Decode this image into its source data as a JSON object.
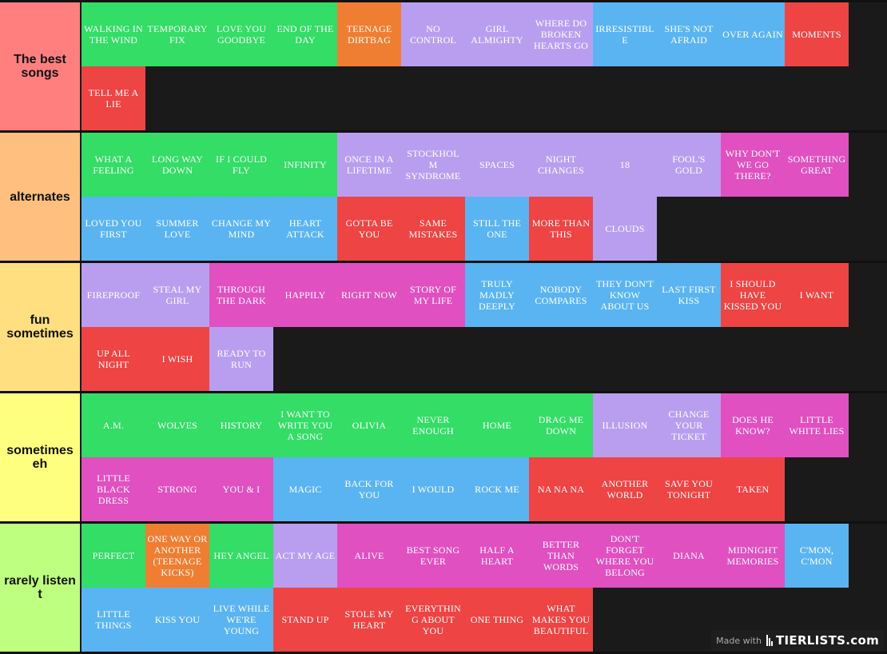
{
  "colors": {
    "green": "#33dd66",
    "orange": "#f07e32",
    "lavender": "#b99ef0",
    "blue": "#5ab4f2",
    "red": "#ee4444",
    "pink": "#e050c0"
  },
  "tiers": [
    {
      "label": "The best songs",
      "label_color": "#ff7f7f",
      "rows": 2,
      "items": [
        {
          "text": "WALKING IN THE WIND",
          "color": "green"
        },
        {
          "text": "TEMPORARY FIX",
          "color": "green"
        },
        {
          "text": "LOVE YOU GOODBYE",
          "color": "green"
        },
        {
          "text": "END OF THE DAY",
          "color": "green"
        },
        {
          "text": "TEENAGE DIRTBAG",
          "color": "orange"
        },
        {
          "text": "NO CONTROL",
          "color": "lavender"
        },
        {
          "text": "GIRL ALMIGHTY",
          "color": "lavender"
        },
        {
          "text": "WHERE DO BROKEN HEARTS GO",
          "color": "lavender"
        },
        {
          "text": "IRRESISTIBLE",
          "color": "blue"
        },
        {
          "text": "SHE'S NOT AFRAID",
          "color": "blue"
        },
        {
          "text": "OVER AGAIN",
          "color": "blue"
        },
        {
          "text": "MOMENTS",
          "color": "red"
        },
        {
          "text": "TELL ME A LIE",
          "color": "red"
        }
      ]
    },
    {
      "label": "alternates",
      "label_color": "#ffbf7f",
      "rows": 2,
      "items": [
        {
          "text": "WHAT A FEELING",
          "color": "green"
        },
        {
          "text": "LONG WAY DOWN",
          "color": "green"
        },
        {
          "text": "IF I COULD FLY",
          "color": "green"
        },
        {
          "text": "INFINITY",
          "color": "green"
        },
        {
          "text": "ONCE IN A LIFETIME",
          "color": "lavender"
        },
        {
          "text": "STOCKHOLM SYNDROME",
          "color": "lavender"
        },
        {
          "text": "SPACES",
          "color": "lavender"
        },
        {
          "text": "NIGHT CHANGES",
          "color": "lavender"
        },
        {
          "text": "18",
          "color": "lavender"
        },
        {
          "text": "FOOL'S GOLD",
          "color": "lavender"
        },
        {
          "text": "WHY DON'T WE GO THERE?",
          "color": "pink"
        },
        {
          "text": "SOMETHING GREAT",
          "color": "pink"
        },
        {
          "text": "LOVED YOU FIRST",
          "color": "blue"
        },
        {
          "text": "SUMMER LOVE",
          "color": "blue"
        },
        {
          "text": "CHANGE MY MIND",
          "color": "blue"
        },
        {
          "text": "HEART ATTACK",
          "color": "blue"
        },
        {
          "text": "GOTTA BE YOU",
          "color": "red"
        },
        {
          "text": "SAME MISTAKES",
          "color": "red"
        },
        {
          "text": "STILL THE ONE",
          "color": "blue"
        },
        {
          "text": "MORE THAN THIS",
          "color": "red"
        },
        {
          "text": "CLOUDS",
          "color": "lavender"
        }
      ]
    },
    {
      "label": "fun sometimes",
      "label_color": "#ffdf7f",
      "rows": 2,
      "items": [
        {
          "text": "FIREPROOF",
          "color": "lavender"
        },
        {
          "text": "STEAL MY GIRL",
          "color": "lavender"
        },
        {
          "text": "THROUGH THE DARK",
          "color": "pink"
        },
        {
          "text": "HAPPILY",
          "color": "pink"
        },
        {
          "text": "RIGHT NOW",
          "color": "pink"
        },
        {
          "text": "STORY OF MY LIFE",
          "color": "pink"
        },
        {
          "text": "TRULY MADLY DEEPLY",
          "color": "blue"
        },
        {
          "text": "NOBODY COMPARES",
          "color": "blue"
        },
        {
          "text": "THEY DON'T KNOW ABOUT US",
          "color": "blue"
        },
        {
          "text": "LAST FIRST KISS",
          "color": "blue"
        },
        {
          "text": "I SHOULD HAVE KISSED YOU",
          "color": "red"
        },
        {
          "text": "I WANT",
          "color": "red"
        },
        {
          "text": "UP ALL NIGHT",
          "color": "red"
        },
        {
          "text": "I WISH",
          "color": "red"
        },
        {
          "text": "READY TO RUN",
          "color": "lavender"
        }
      ]
    },
    {
      "label": "sometimes eh",
      "label_color": "#ffff7f",
      "rows": 2,
      "items": [
        {
          "text": "A.M.",
          "color": "green"
        },
        {
          "text": "WOLVES",
          "color": "green"
        },
        {
          "text": "HISTORY",
          "color": "green"
        },
        {
          "text": "I WANT TO WRITE YOU A SONG",
          "color": "green"
        },
        {
          "text": "OLIVIA",
          "color": "green"
        },
        {
          "text": "NEVER ENOUGH",
          "color": "green"
        },
        {
          "text": "HOME",
          "color": "green"
        },
        {
          "text": "DRAG ME DOWN",
          "color": "green"
        },
        {
          "text": "ILLUSION",
          "color": "lavender"
        },
        {
          "text": "CHANGE YOUR TICKET",
          "color": "lavender"
        },
        {
          "text": "DOES HE KNOW?",
          "color": "pink"
        },
        {
          "text": "LITTLE WHITE LIES",
          "color": "pink"
        },
        {
          "text": "LITTLE BLACK DRESS",
          "color": "pink"
        },
        {
          "text": "STRONG",
          "color": "pink"
        },
        {
          "text": "YOU & I",
          "color": "pink"
        },
        {
          "text": "MAGIC",
          "color": "blue"
        },
        {
          "text": "BACK FOR YOU",
          "color": "blue"
        },
        {
          "text": "I WOULD",
          "color": "blue"
        },
        {
          "text": "ROCK ME",
          "color": "blue"
        },
        {
          "text": "NA NA NA",
          "color": "red"
        },
        {
          "text": "ANOTHER WORLD",
          "color": "red"
        },
        {
          "text": "SAVE YOU TONIGHT",
          "color": "red"
        },
        {
          "text": "TAKEN",
          "color": "red"
        }
      ]
    },
    {
      "label": "rarely listen t",
      "label_color": "#bfff7f",
      "rows": 2,
      "items": [
        {
          "text": "PERFECT",
          "color": "green"
        },
        {
          "text": "ONE WAY OR ANOTHER (TEENAGE KICKS)",
          "color": "orange"
        },
        {
          "text": "HEY ANGEL",
          "color": "green"
        },
        {
          "text": "ACT MY AGE",
          "color": "lavender"
        },
        {
          "text": "ALIVE",
          "color": "pink"
        },
        {
          "text": "BEST SONG EVER",
          "color": "pink"
        },
        {
          "text": "HALF A HEART",
          "color": "pink"
        },
        {
          "text": "BETTER THAN WORDS",
          "color": "pink"
        },
        {
          "text": "DON'T FORGET WHERE YOU BELONG",
          "color": "pink"
        },
        {
          "text": "DIANA",
          "color": "pink"
        },
        {
          "text": "MIDNIGHT MEMORIES",
          "color": "pink"
        },
        {
          "text": "C'MON, C'MON",
          "color": "blue"
        },
        {
          "text": "LITTLE THINGS",
          "color": "blue"
        },
        {
          "text": "KISS YOU",
          "color": "blue"
        },
        {
          "text": "LIVE WHILE WE'RE YOUNG",
          "color": "blue"
        },
        {
          "text": "STAND UP",
          "color": "red"
        },
        {
          "text": "STOLE MY HEART",
          "color": "red"
        },
        {
          "text": "EVERYTHING ABOUT YOU",
          "color": "red"
        },
        {
          "text": "ONE THING",
          "color": "red"
        },
        {
          "text": "WHAT MAKES YOU BEAUTIFUL",
          "color": "red"
        }
      ]
    }
  ],
  "watermark": {
    "made_with": "Made with",
    "brand": "TIERLISTS.com"
  }
}
